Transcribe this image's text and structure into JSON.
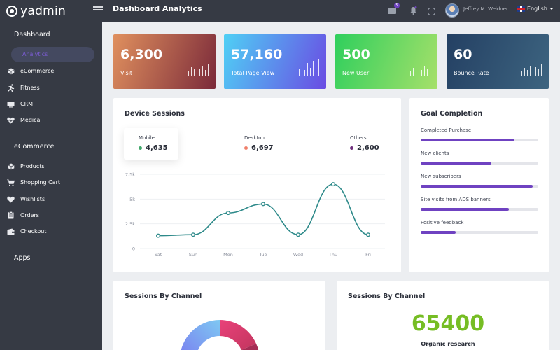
{
  "app": {
    "brand": "yadmin",
    "page_title": "Dashboard Analytics"
  },
  "topbar": {
    "mail_badge": "5",
    "user_name": "Jeffrey M. Weidner",
    "language": "English"
  },
  "sidebar": {
    "sections": [
      {
        "title": "Dashboard",
        "items": [
          {
            "label": "Analytics",
            "icon": "chart-icon",
            "active": true
          },
          {
            "label": "eCommerce",
            "icon": "cube-icon"
          },
          {
            "label": "Fitness",
            "icon": "runner-icon"
          },
          {
            "label": "CRM",
            "icon": "monitor-icon"
          },
          {
            "label": "Medical",
            "icon": "heartbeat-icon"
          }
        ]
      },
      {
        "title": "eCommerce",
        "items": [
          {
            "label": "Products",
            "icon": "cube-icon"
          },
          {
            "label": "Shopping Cart",
            "icon": "cart-icon"
          },
          {
            "label": "Wishlists",
            "icon": "heart-icon"
          },
          {
            "label": "Orders",
            "icon": "clipboard-icon"
          },
          {
            "label": "Checkout",
            "icon": "wallet-icon"
          }
        ]
      },
      {
        "title": "Apps",
        "items": []
      }
    ]
  },
  "stats": [
    {
      "value": "6,300",
      "label": "Visit",
      "gradient": [
        "#e0905e",
        "#7b2a3a"
      ]
    },
    {
      "value": "57,160",
      "label": "Total Page View",
      "gradient": [
        "#4fd0f5",
        "#6a4be3"
      ]
    },
    {
      "value": "500",
      "label": "New User",
      "gradient": [
        "#2fcf5d",
        "#a6e06a"
      ]
    },
    {
      "value": "60",
      "label": "Bounce Rate",
      "gradient": [
        "#244063",
        "#3d6480"
      ]
    }
  ],
  "device_sessions": {
    "title": "Device Sessions",
    "legend": [
      {
        "name": "Mobile",
        "value": "4,635",
        "color": "#41a86b"
      },
      {
        "name": "Desktop",
        "value": "6,697",
        "color": "#ef7f6a"
      },
      {
        "name": "Others",
        "value": "2,600",
        "color": "#6f2f7d"
      }
    ]
  },
  "chart_data": {
    "type": "line",
    "categories": [
      "Sat",
      "Sun",
      "Mon",
      "Tue",
      "Wed",
      "Thu",
      "Fri"
    ],
    "series": [
      {
        "values": [
          1300,
          1400,
          3600,
          4500,
          1400,
          6500,
          1400
        ]
      }
    ],
    "ytick_labels": [
      "7.5k",
      "5k",
      "2.5k",
      "0"
    ],
    "ylim": [
      0,
      7500
    ],
    "grid": true,
    "line_color": "#2e8a8a"
  },
  "goal_completion": {
    "title": "Goal Completion",
    "items": [
      {
        "label": "Completed Purchase",
        "progress": 0.8
      },
      {
        "label": "New clients",
        "progress": 0.6
      },
      {
        "label": "New subscribers",
        "progress": 0.95
      },
      {
        "label": "Site visits from ADS banners",
        "progress": 0.75
      },
      {
        "label": "Positive feedback",
        "progress": 0.3
      }
    ],
    "bar_color": "#6f42c1"
  },
  "sessions_by_channel_left": {
    "title": "Sessions By Channel"
  },
  "sessions_by_channel_right": {
    "title": "Sessions By Channel",
    "value": "65400",
    "caption": "Organic research"
  }
}
